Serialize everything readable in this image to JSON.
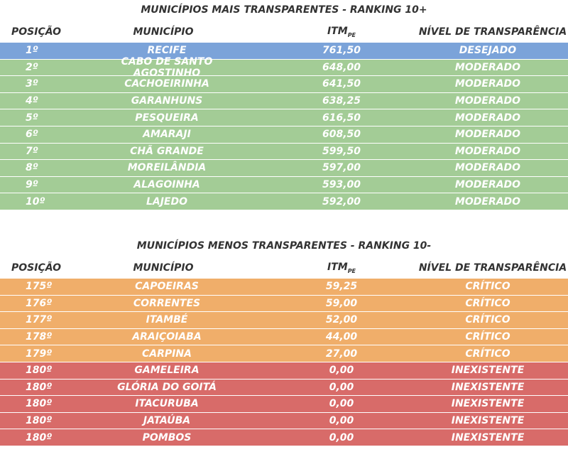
{
  "top": {
    "title": "MUNICÍPIOS MAIS TRANSPARENTES - RANKING 10+",
    "headers": {
      "pos": "POSIÇÃO",
      "mun": "MUNICÍPIO",
      "itm": "ITM",
      "itm_sub": "PE",
      "nivel": "NÍVEL DE TRANSPARÊNCIA"
    },
    "rows": [
      {
        "pos": "1º",
        "mun": "RECIFE",
        "itm": "761,50",
        "nivel": "DESEJADO",
        "color": "#7ba3d9"
      },
      {
        "pos": "2º",
        "mun": "CABO DE SANTO AGOSTINHO",
        "itm": "648,00",
        "nivel": "MODERADO",
        "color": "#a3cc96"
      },
      {
        "pos": "3º",
        "mun": "CACHOEIRINHA",
        "itm": "641,50",
        "nivel": "MODERADO",
        "color": "#a3cc96"
      },
      {
        "pos": "4º",
        "mun": "GARANHUNS",
        "itm": "638,25",
        "nivel": "MODERADO",
        "color": "#a3cc96"
      },
      {
        "pos": "5º",
        "mun": "PESQUEIRA",
        "itm": "616,50",
        "nivel": "MODERADO",
        "color": "#a3cc96"
      },
      {
        "pos": "6º",
        "mun": "AMARAJI",
        "itm": "608,50",
        "nivel": "MODERADO",
        "color": "#a3cc96"
      },
      {
        "pos": "7º",
        "mun": "CHÃ GRANDE",
        "itm": "599,50",
        "nivel": "MODERADO",
        "color": "#a3cc96"
      },
      {
        "pos": "8º",
        "mun": "MOREILÂNDIA",
        "itm": "597,00",
        "nivel": "MODERADO",
        "color": "#a3cc96"
      },
      {
        "pos": "9º",
        "mun": "ALAGOINHA",
        "itm": "593,00",
        "nivel": "MODERADO",
        "color": "#a3cc96"
      },
      {
        "pos": "10º",
        "mun": "LAJEDO",
        "itm": "592,00",
        "nivel": "MODERADO",
        "color": "#a3cc96"
      }
    ]
  },
  "bottom": {
    "title": "MUNICÍPIOS MENOS TRANSPARENTES - RANKING 10-",
    "headers": {
      "pos": "POSIÇÃO",
      "mun": "MUNICÍPIO",
      "itm": "ITM",
      "itm_sub": "PE",
      "nivel": "NÍVEL DE TRANSPARÊNCIA"
    },
    "rows": [
      {
        "pos": "175º",
        "mun": "CAPOEIRAS",
        "itm": "59,25",
        "nivel": "CRÍTICO",
        "color": "#f0ae6a"
      },
      {
        "pos": "176º",
        "mun": "CORRENTES",
        "itm": "59,00",
        "nivel": "CRÍTICO",
        "color": "#f0ae6a"
      },
      {
        "pos": "177º",
        "mun": "ITAMBÉ",
        "itm": "52,00",
        "nivel": "CRÍTICO",
        "color": "#f0ae6a"
      },
      {
        "pos": "178º",
        "mun": "ARAIÇOIABA",
        "itm": "44,00",
        "nivel": "CRÍTICO",
        "color": "#f0ae6a"
      },
      {
        "pos": "179º",
        "mun": "CARPINA",
        "itm": "27,00",
        "nivel": "CRÍTICO",
        "color": "#f0ae6a"
      },
      {
        "pos": "180º",
        "mun": "GAMELEIRA",
        "itm": "0,00",
        "nivel": "INEXISTENTE",
        "color": "#d86b69"
      },
      {
        "pos": "180º",
        "mun": "GLÓRIA DO GOITÁ",
        "itm": "0,00",
        "nivel": "INEXISTENTE",
        "color": "#d86b69"
      },
      {
        "pos": "180º",
        "mun": "ITACURUBA",
        "itm": "0,00",
        "nivel": "INEXISTENTE",
        "color": "#d86b69"
      },
      {
        "pos": "180º",
        "mun": "JATAÚBA",
        "itm": "0,00",
        "nivel": "INEXISTENTE",
        "color": "#d86b69"
      },
      {
        "pos": "180º",
        "mun": "POMBOS",
        "itm": "0,00",
        "nivel": "INEXISTENTE",
        "color": "#d86b69"
      }
    ]
  }
}
